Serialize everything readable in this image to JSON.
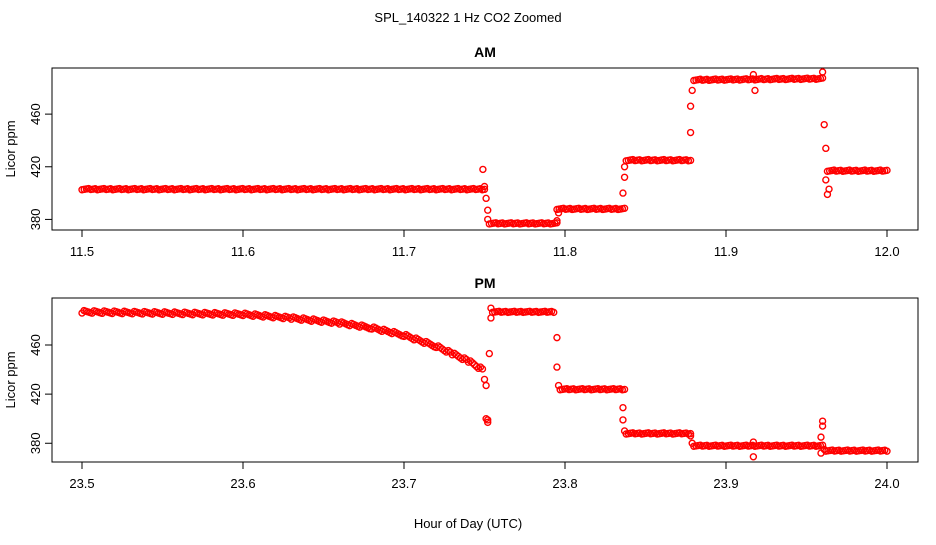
{
  "figure": {
    "title": "SPL_140322  1 Hz CO2 Zoomed",
    "xlabel": "Hour of Day (UTC)"
  },
  "colors": {
    "points": "#ff0000",
    "axis": "#000000"
  },
  "chart_data": [
    {
      "type": "scatter",
      "title": "AM",
      "xlabel": "",
      "ylabel": "Licor ppm",
      "xlim": [
        11.5,
        12.0
      ],
      "ylim": [
        375,
        492
      ],
      "xticks": [
        "11.5",
        "11.6",
        "11.7",
        "11.8",
        "11.9",
        "12.0"
      ],
      "yticks": [
        "380",
        "420",
        "460"
      ],
      "marker": "open-circle",
      "series": [
        {
          "segments": [
            {
              "x": [
                11.5,
                11.75
              ],
              "y": [
                403,
                403
              ]
            },
            {
              "x": [
                11.753,
                11.795
              ],
              "y": [
                377,
                377
              ]
            },
            {
              "x": [
                11.795,
                11.837
              ],
              "y": [
                388,
                388
              ]
            },
            {
              "x": [
                11.838,
                11.878
              ],
              "y": [
                425,
                425
              ]
            },
            {
              "x": [
                11.88,
                11.96
              ],
              "y": [
                486,
                487
              ]
            },
            {
              "x": [
                11.963,
                12.0
              ],
              "y": [
                417,
                417
              ]
            }
          ],
          "x": [
            11.749,
            11.75,
            11.751,
            11.752,
            11.752,
            11.795,
            11.796,
            11.836,
            11.837,
            11.837,
            11.878,
            11.878,
            11.879,
            11.917,
            11.918,
            11.96,
            11.961,
            11.962,
            11.962,
            11.963,
            11.964
          ],
          "y": [
            418,
            405,
            396,
            387,
            380,
            379,
            385,
            400,
            412,
            420,
            446,
            466,
            478,
            490,
            478,
            492,
            452,
            434,
            410,
            399,
            403
          ]
        }
      ]
    },
    {
      "type": "scatter",
      "title": "PM",
      "xlabel": "",
      "ylabel": "Licor ppm",
      "xlim": [
        23.5,
        24.0
      ],
      "ylim": [
        368,
        495
      ],
      "xticks": [
        "23.5",
        "23.6",
        "23.7",
        "23.8",
        "23.9",
        "24.0"
      ],
      "yticks": [
        "380",
        "420",
        "460"
      ],
      "marker": "open-circle",
      "series": [
        {
          "curve": {
            "x": [
              23.5,
              23.55,
              23.6,
              23.63,
              23.66,
              23.68,
              23.7,
              23.72,
              23.73,
              23.74,
              23.75
            ],
            "y": [
              487,
              486,
              485,
              482,
              478,
              474,
              468,
              459,
              453,
              447,
              439
            ]
          },
          "segments": [
            {
              "x": [
                23.755,
                23.793
              ],
              "y": [
                487,
                487
              ]
            },
            {
              "x": [
                23.797,
                23.837
              ],
              "y": [
                424,
                424
              ]
            },
            {
              "x": [
                23.838,
                23.878
              ],
              "y": [
                388,
                388
              ]
            },
            {
              "x": [
                23.88,
                23.96
              ],
              "y": [
                378,
                378
              ]
            },
            {
              "x": [
                23.962,
                24.0
              ],
              "y": [
                374,
                374
              ]
            }
          ],
          "x": [
            23.75,
            23.751,
            23.751,
            23.752,
            23.752,
            23.753,
            23.754,
            23.754,
            23.795,
            23.795,
            23.796,
            23.836,
            23.836,
            23.837,
            23.878,
            23.879,
            23.917,
            23.917,
            23.959,
            23.959,
            23.96,
            23.96,
            23.961
          ],
          "y": [
            432,
            427,
            400,
            397,
            399,
            453,
            482,
            490,
            466,
            442,
            427,
            409,
            399,
            390,
            386,
            380,
            369,
            381,
            372,
            385,
            394,
            398,
            375
          ]
        }
      ]
    }
  ]
}
